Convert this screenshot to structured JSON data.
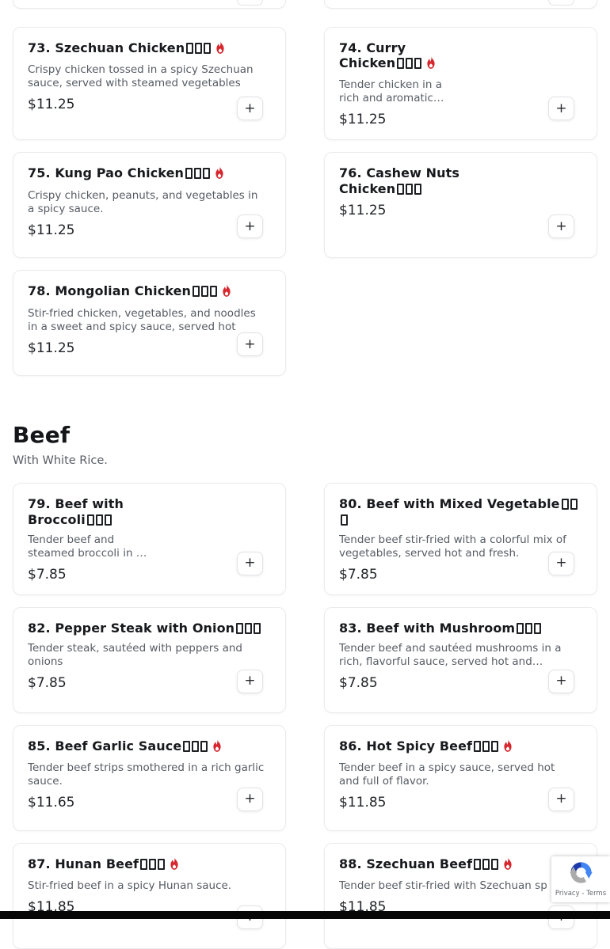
{
  "ui": {
    "add_button_label": "+",
    "colors": {
      "flame_red": "#d7272e",
      "card_border": "#ebebee",
      "title_text": "#17191d",
      "description_text": "#565c64",
      "bottom_bar": "#060607"
    }
  },
  "menu": {
    "sections": [
      {
        "heading": "",
        "subheading": "",
        "items": [
          {
            "name": "73. Szechuan Chicken",
            "missing_glyph_boxes": 3,
            "spicy_flame": true,
            "description": "Crispy chicken tossed in a spicy Szechuan\nsauce, served with steamed vegetables",
            "price": "$11.25"
          },
          {
            "name": "74. Curry\nChicken",
            "missing_glyph_boxes": 3,
            "spicy_flame": true,
            "description": "Tender chicken in a\nrich and aromatic…",
            "price": "$11.25"
          },
          {
            "name": "75. Kung Pao Chicken",
            "missing_glyph_boxes": 3,
            "spicy_flame": true,
            "description": "Crispy chicken, peanuts, and vegetables in\na spicy sauce.",
            "price": "$11.25"
          },
          {
            "name": "76. Cashew Nuts\nChicken",
            "missing_glyph_boxes": 3,
            "spicy_flame": false,
            "description": "",
            "price": "$11.25"
          },
          {
            "name": "78. Mongolian Chicken",
            "missing_glyph_boxes": 3,
            "spicy_flame": true,
            "description": "Stir-fried chicken, vegetables, and noodles\nin a sweet and spicy sauce, served hot",
            "price": "$11.25"
          }
        ]
      },
      {
        "heading": "Beef",
        "subheading": "With White Rice.",
        "items": [
          {
            "name": "79. Beef with\nBroccoli",
            "missing_glyph_boxes": 3,
            "spicy_flame": false,
            "description": "Tender beef and\nsteamed broccoli in …",
            "price": "$7.85"
          },
          {
            "name": "80. Beef with Mixed Vegetable",
            "missing_glyph_boxes": 3,
            "spicy_flame": false,
            "description": "Tender beef stir-fried with a colorful mix of\nvegetables, served hot and fresh.",
            "price": "$7.85"
          },
          {
            "name": "82. Pepper Steak with Onion",
            "missing_glyph_boxes": 3,
            "spicy_flame": false,
            "description": "Tender steak, sautéed with peppers and\nonions",
            "price": "$7.85"
          },
          {
            "name": "83. Beef with Mushroom",
            "missing_glyph_boxes": 3,
            "spicy_flame": false,
            "description": "Tender beef and sautéed mushrooms in a\nrich, flavorful sauce, served hot and…",
            "price": "$7.85"
          },
          {
            "name": "85. Beef Garlic Sauce",
            "missing_glyph_boxes": 3,
            "spicy_flame": true,
            "description": "Tender beef strips smothered in a rich garlic\nsauce.",
            "price": "$11.65"
          },
          {
            "name": "86. Hot Spicy Beef",
            "missing_glyph_boxes": 3,
            "spicy_flame": true,
            "description": "Tender beef in a spicy sauce, served hot\nand full of flavor.",
            "price": "$11.85"
          },
          {
            "name": "87. Hunan Beef",
            "missing_glyph_boxes": 3,
            "spicy_flame": true,
            "description": "Stir-fried beef in a spicy Hunan sauce.",
            "price": "$11.85"
          },
          {
            "name": "88. Szechuan Beef",
            "missing_glyph_boxes": 3,
            "spicy_flame": true,
            "description": "Tender beef stir-fried with Szechuan sp",
            "price": "$11.85"
          }
        ]
      }
    ]
  },
  "recaptcha": {
    "terms_label": "Privacy - Terms"
  }
}
